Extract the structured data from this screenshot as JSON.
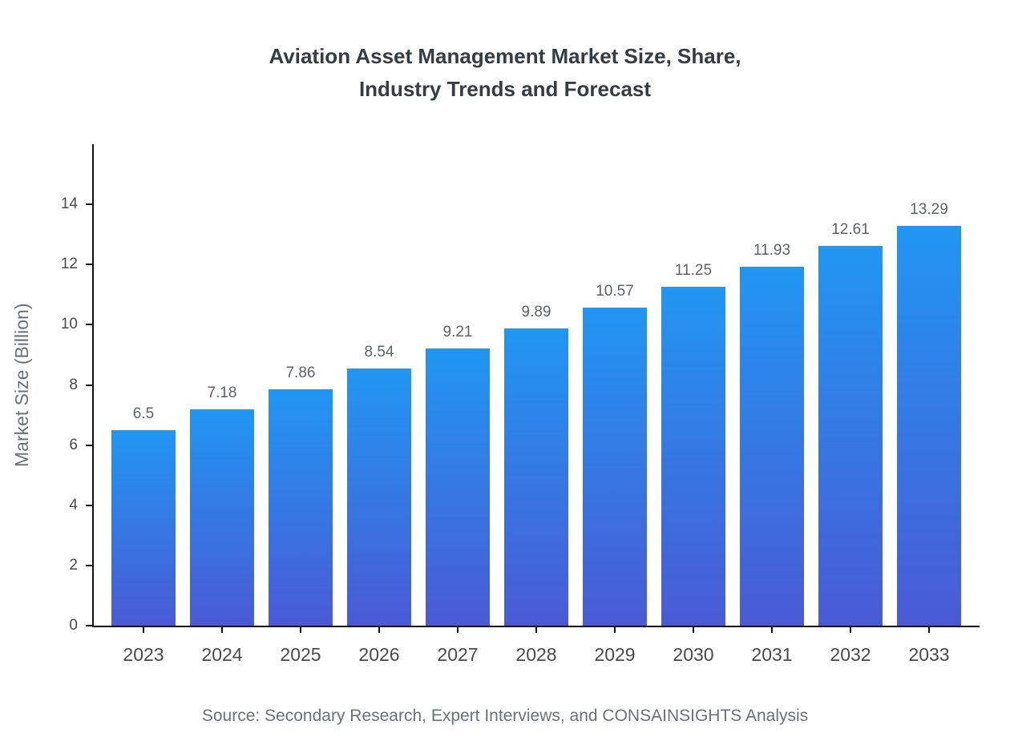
{
  "title_line1": "Aviation Asset Management Market Size, Share,",
  "title_line2": "Industry Trends and Forecast",
  "source": "Source: Secondary Research, Expert Interviews, and CONSAINSIGHTS Analysis",
  "colors": {
    "bar_gradient_top": "#2196f3",
    "bar_gradient_bottom": "#4a5ad4",
    "axis": "#111111",
    "title_text": "#343c44",
    "tick_text": "#4a4a4a",
    "value_text": "#5f6368",
    "muted_text": "#6b7177"
  },
  "chart_data": {
    "type": "bar",
    "title": "Aviation Asset Management Market Size, Share, Industry Trends and Forecast",
    "categories": [
      "2023",
      "2024",
      "2025",
      "2026",
      "2027",
      "2028",
      "2029",
      "2030",
      "2031",
      "2032",
      "2033"
    ],
    "values": [
      6.5,
      7.18,
      7.86,
      8.54,
      9.21,
      9.89,
      10.57,
      11.25,
      11.93,
      12.61,
      13.29
    ],
    "value_labels": [
      "6.5",
      "7.18",
      "7.86",
      "8.54",
      "9.21",
      "9.89",
      "10.57",
      "11.25",
      "11.93",
      "12.61",
      "13.29"
    ],
    "xlabel": "",
    "ylabel": "Market Size (Billion)",
    "ylim": [
      0,
      16
    ],
    "yticks": [
      0,
      2,
      4,
      6,
      8,
      10,
      12,
      14
    ],
    "grid": false,
    "legend": false
  }
}
